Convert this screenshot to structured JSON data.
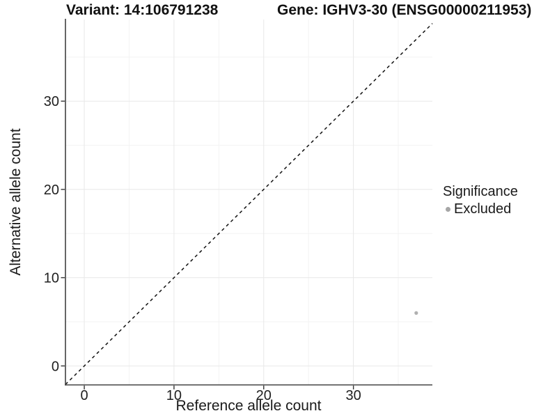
{
  "header": {
    "variant_title": "Variant: 14:106791238",
    "gene_title": "Gene: IGHV3-30 (ENSG00000211953)"
  },
  "chart_data": {
    "type": "scatter",
    "title": "Variant: 14:106791238  |  Gene: IGHV3-30 (ENSG00000211953)",
    "xlabel": "Reference allele count",
    "ylabel": "Alternative allele count",
    "xlim": [
      -2.1,
      38.8
    ],
    "ylim": [
      -2.15,
      39.25
    ],
    "x_major_ticks": [
      0,
      10,
      20,
      30
    ],
    "y_major_ticks": [
      0,
      10,
      20,
      30
    ],
    "x_minor_gridlines": [
      5,
      15,
      25,
      35
    ],
    "y_minor_gridlines": [
      5,
      15,
      25,
      35
    ],
    "grid": "major and minor gridlines on white panel",
    "points": [
      {
        "x": 37,
        "y": 6,
        "significance": "Excluded",
        "color": "#b0b0b0"
      }
    ],
    "identity_line": {
      "slope": 1,
      "intercept": 0,
      "style": "dashed",
      "color": "#111111",
      "label": "y = x"
    },
    "legend": {
      "position": "right",
      "title": "Significance",
      "items": [
        {
          "label": "Excluded",
          "color": "#a6a6a6"
        }
      ]
    },
    "colors": {
      "axis_line": "#404040",
      "tick_mark": "#333333",
      "grid_major": "#e8e8e8",
      "grid_minor": "#f3f3f3",
      "text": "#1a1a1a",
      "background": "#ffffff"
    }
  }
}
